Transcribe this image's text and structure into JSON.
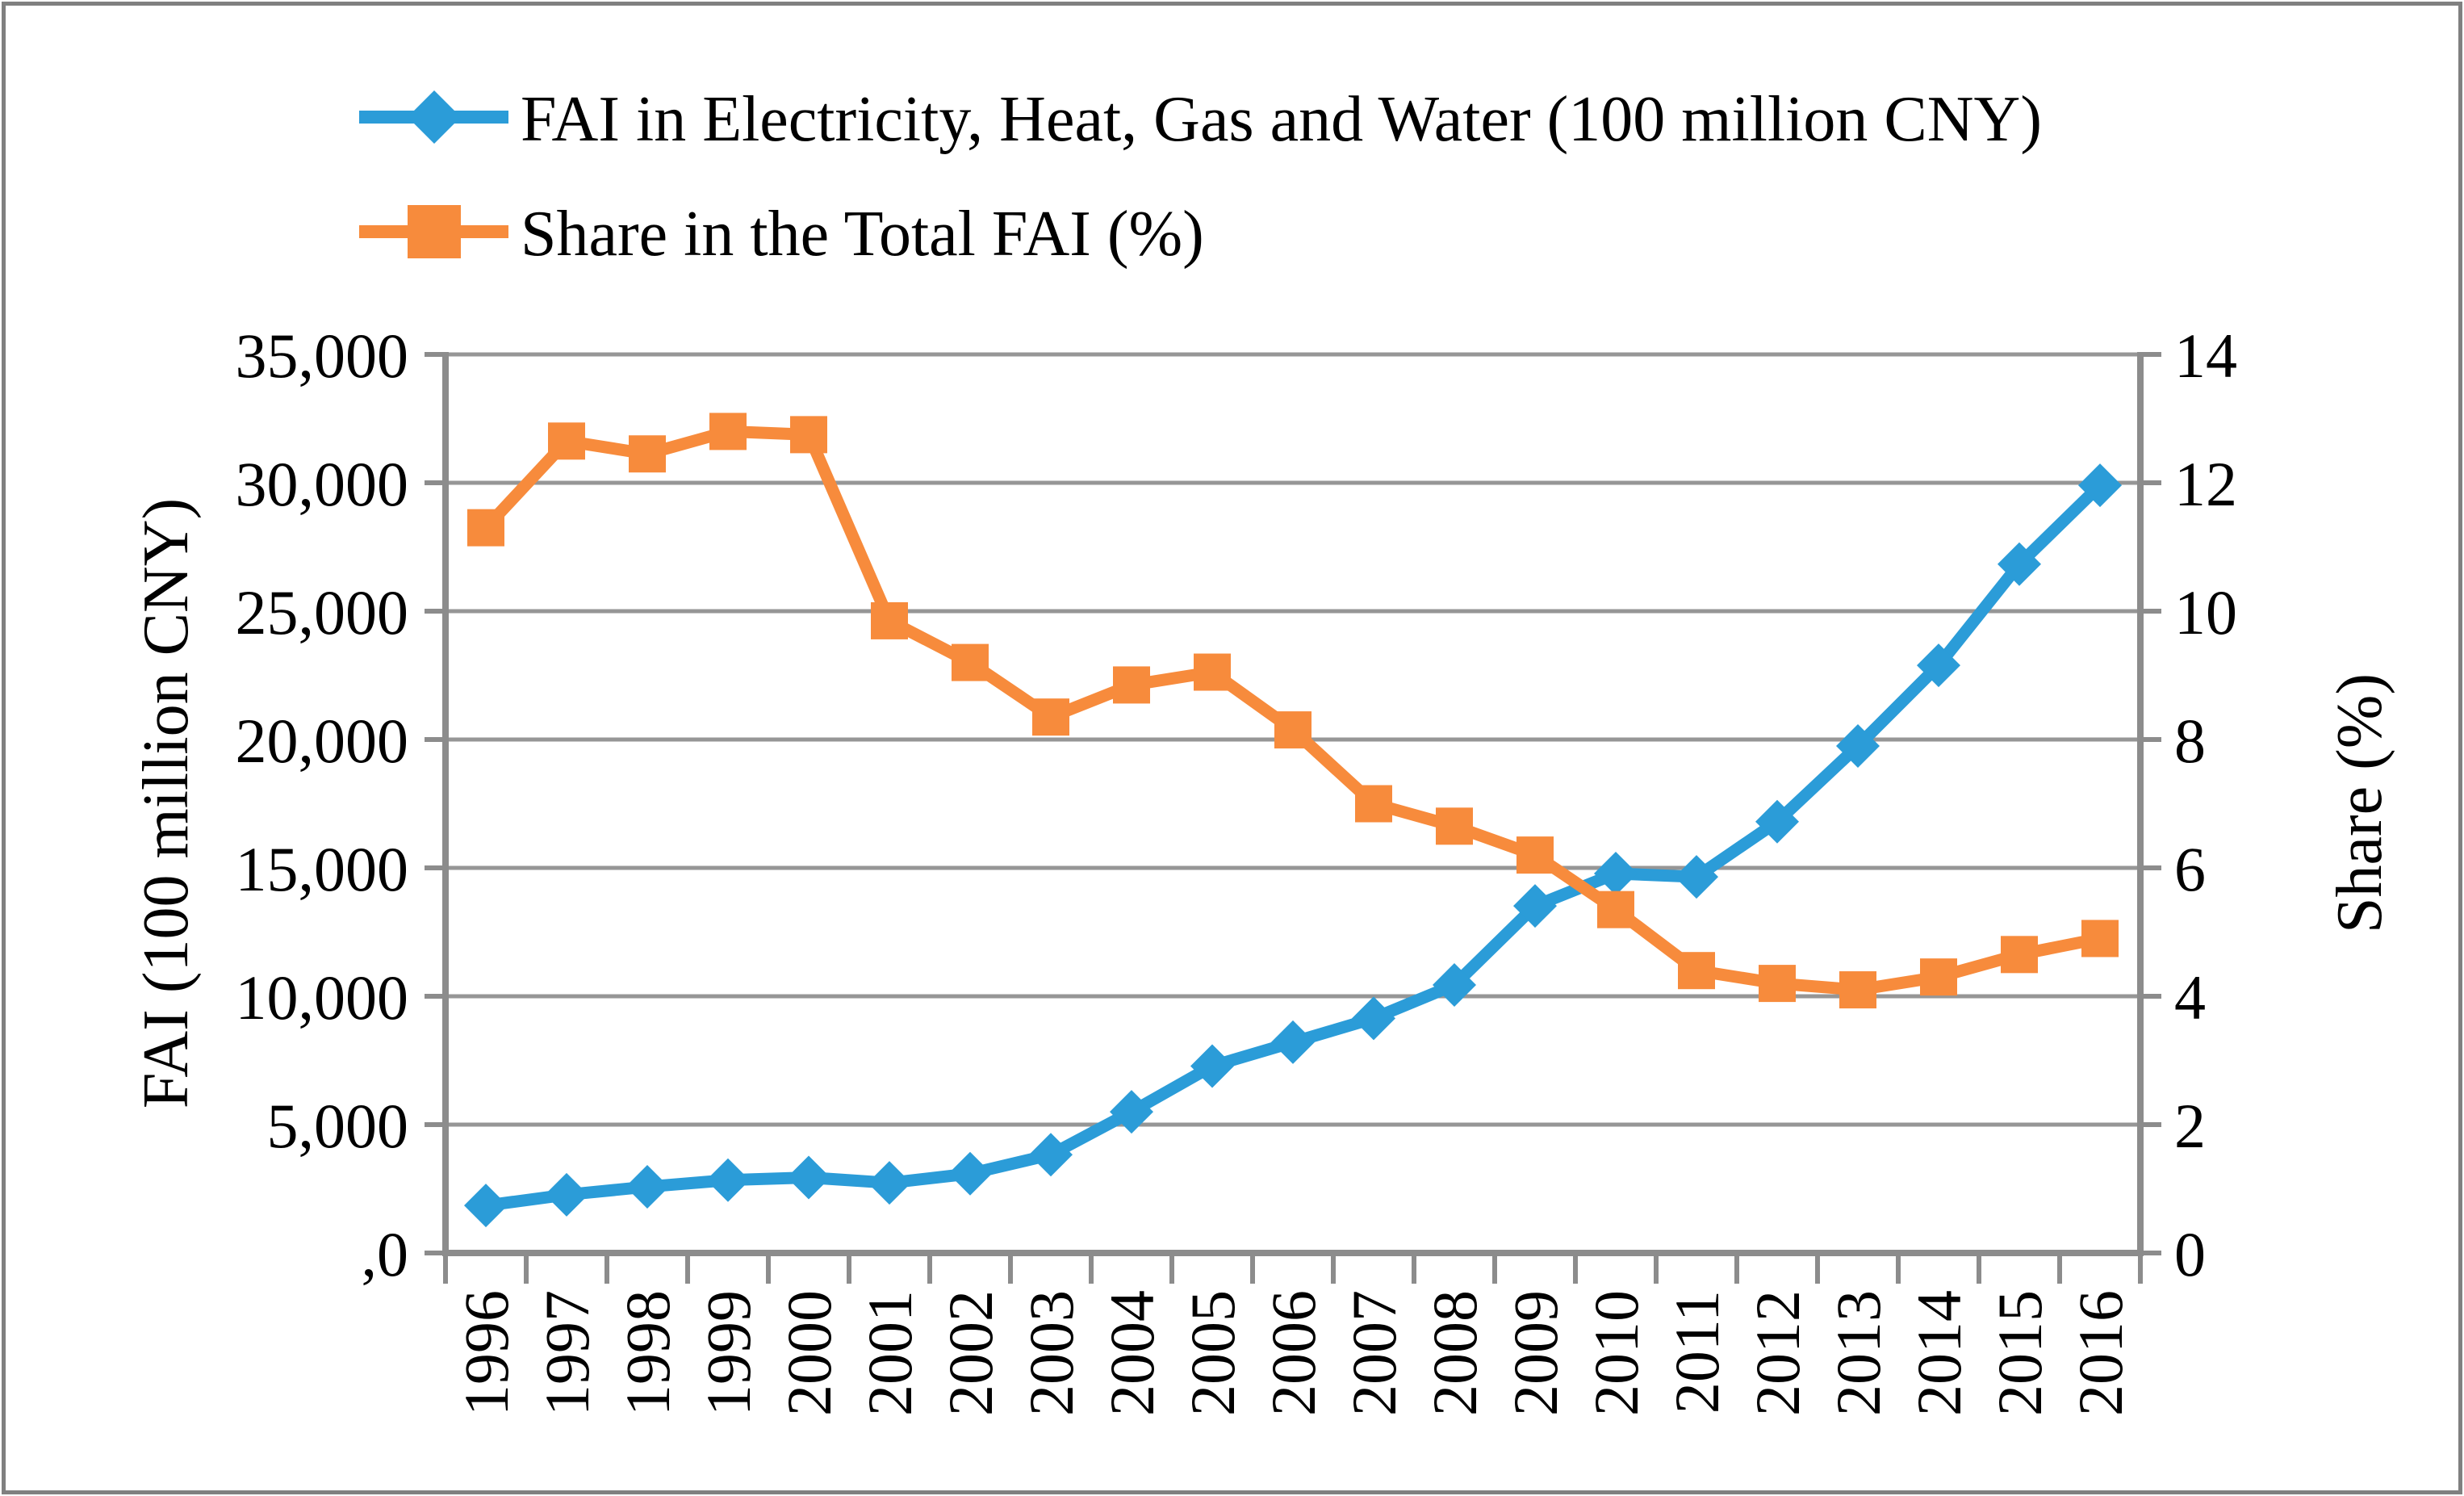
{
  "legend": {
    "items": [
      {
        "label": "FAI in Electricity, Heat, Gas and Water (100 million CNY)",
        "color": "#2B9CD8",
        "marker": "diamond"
      },
      {
        "label": "Share in the Total FAI (%)",
        "color": "#F78B3C",
        "marker": "square"
      }
    ]
  },
  "axes": {
    "left": {
      "title": "FAI (100 million CNY)",
      "tick_labels": [
        "35,000",
        "30,000",
        "25,000",
        "20,000",
        "15,000",
        "10,000",
        "5,000",
        ",0"
      ]
    },
    "right": {
      "title": "Share (%)",
      "tick_labels": [
        "14",
        "12",
        "10",
        "8",
        "6",
        "4",
        "2",
        "0"
      ]
    },
    "x": {
      "tick_labels": [
        "1996",
        "1997",
        "1998",
        "1999",
        "2000",
        "2001",
        "2002",
        "2003",
        "2004",
        "2005",
        "2006",
        "2007",
        "2008",
        "2009",
        "2010",
        "2011",
        "2012",
        "2013",
        "2014",
        "2015",
        "2016"
      ]
    }
  },
  "chart_data": {
    "type": "line",
    "x": [
      1996,
      1997,
      1998,
      1999,
      2000,
      2001,
      2002,
      2003,
      2004,
      2005,
      2006,
      2007,
      2008,
      2009,
      2010,
      2011,
      2012,
      2013,
      2014,
      2015,
      2016
    ],
    "series": [
      {
        "name": "FAI in Electricity, Heat, Gas and Water (100 million CNY)",
        "axis": "left",
        "color": "#2B9CD8",
        "marker": "diamond",
        "values": [
          1850,
          2270,
          2580,
          2840,
          2940,
          2730,
          3090,
          3830,
          5500,
          7280,
          8210,
          9140,
          10440,
          13520,
          14780,
          14650,
          16800,
          19750,
          22890,
          26830,
          29900
        ]
      },
      {
        "name": "Share in the Total FAI (%)",
        "axis": "right",
        "color": "#F78B3C",
        "marker": "square",
        "values": [
          11.3,
          12.65,
          12.45,
          12.8,
          12.75,
          9.85,
          9.2,
          8.35,
          8.85,
          9.05,
          8.15,
          7.0,
          6.65,
          6.2,
          5.35,
          4.4,
          4.2,
          4.1,
          4.3,
          4.65,
          4.9
        ]
      }
    ],
    "left_ylim": [
      0,
      35000
    ],
    "left_step": 5000,
    "right_ylim": [
      0,
      14
    ],
    "right_step": 2,
    "grid": true,
    "legend_position": "top-left",
    "grid_color": "#969696",
    "axis_color": "#8C8C8C"
  }
}
